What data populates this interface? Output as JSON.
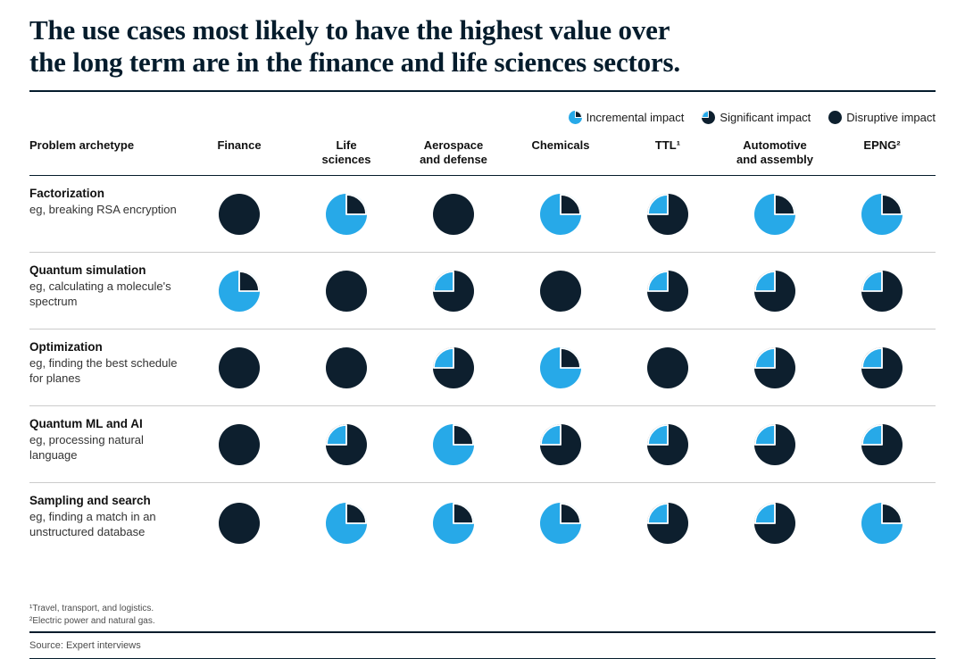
{
  "title": "The use cases most likely to have the highest value over\nthe long term are in the finance and life sciences sectors.",
  "colors": {
    "dark": "#0D1F2E",
    "blue": "#27A9E8"
  },
  "legend": [
    {
      "key": "incremental",
      "label": "Incremental impact"
    },
    {
      "key": "significant",
      "label": "Significant impact"
    },
    {
      "key": "disruptive",
      "label": "Disruptive impact"
    }
  ],
  "chart_data": {
    "type": "table",
    "row_header": "Problem archetype",
    "columns": [
      "Finance",
      "Life\nsciences",
      "Aerospace\nand defense",
      "Chemicals",
      "TTL¹",
      "Automotive\nand assembly",
      "EPNG²"
    ],
    "impact_scale": [
      "incremental",
      "significant",
      "disruptive"
    ],
    "rows": [
      {
        "archetype": "Factorization",
        "example": "eg, breaking RSA encryption",
        "impacts": [
          "disruptive",
          "incremental",
          "disruptive",
          "incremental",
          "significant",
          "incremental",
          "incremental"
        ]
      },
      {
        "archetype": "Quantum simulation",
        "example": "eg, calculating a molecule's spectrum",
        "impacts": [
          "incremental",
          "disruptive",
          "significant",
          "disruptive",
          "significant",
          "significant",
          "significant"
        ]
      },
      {
        "archetype": "Optimization",
        "example": "eg, finding the best schedule for planes",
        "impacts": [
          "disruptive",
          "disruptive",
          "significant",
          "incremental",
          "disruptive",
          "significant",
          "significant"
        ]
      },
      {
        "archetype": "Quantum ML and AI",
        "example": "eg, processing natural language",
        "impacts": [
          "disruptive",
          "significant",
          "incremental",
          "significant",
          "significant",
          "significant",
          "significant"
        ]
      },
      {
        "archetype": "Sampling and search",
        "example": "eg, finding a match in an unstructured database",
        "impacts": [
          "disruptive",
          "incremental",
          "incremental",
          "incremental",
          "significant",
          "significant",
          "incremental"
        ]
      }
    ]
  },
  "footnotes": [
    "¹Travel, transport, and logistics.",
    "²Electric power and natural gas."
  ],
  "source": "Source: Expert interviews"
}
